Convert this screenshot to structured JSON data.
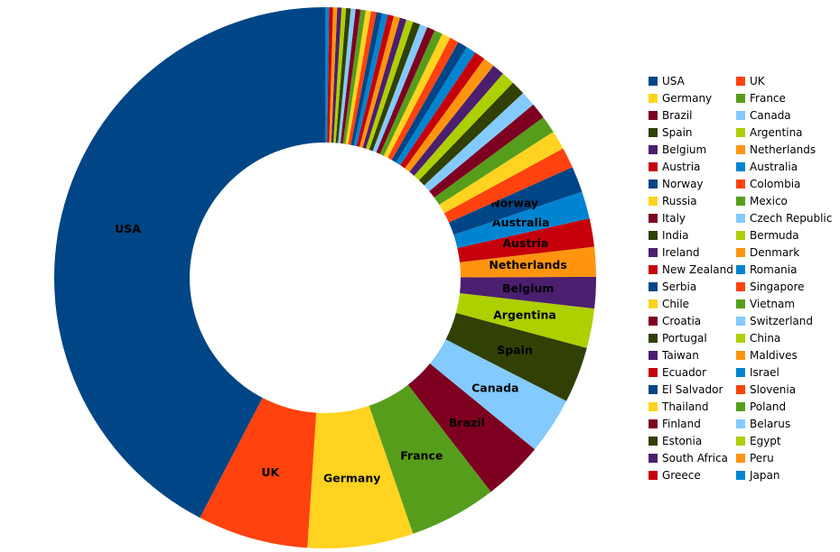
{
  "chart_data": {
    "type": "pie",
    "subtype": "donut",
    "title": "",
    "categories": [
      "USA",
      "UK",
      "Germany",
      "France",
      "Brazil",
      "Canada",
      "Spain",
      "Argentina",
      "Belgium",
      "Netherlands",
      "Austria",
      "Australia",
      "Norway",
      "Colombia",
      "Russia",
      "Mexico",
      "Italy",
      "Czech Republic",
      "India",
      "Bermuda",
      "Ireland",
      "Denmark",
      "New Zealand",
      "Romania",
      "Serbia",
      "Singapore",
      "Chile",
      "Vietnam",
      "Croatia",
      "Switzerland",
      "Portugal",
      "China",
      "Taiwan",
      "Maldives",
      "Ecuador",
      "Israel",
      "El Salvador",
      "Slovenia",
      "Thailand",
      "Poland",
      "Finland",
      "Belarus",
      "Estonia",
      "Egypt",
      "South Africa",
      "Peru",
      "Greece",
      "Japan"
    ],
    "values": [
      43.0,
      6.7,
      6.4,
      5.3,
      3.65,
      3.45,
      3.4,
      2.4,
      1.9,
      1.8,
      1.72,
      1.65,
      1.58,
      1.25,
      1.15,
      1.05,
      0.97,
      0.92,
      0.86,
      0.8,
      0.74,
      0.69,
      0.65,
      0.61,
      0.58,
      0.55,
      0.53,
      0.5,
      0.48,
      0.46,
      0.44,
      0.42,
      0.4,
      0.38,
      0.37,
      0.35,
      0.34,
      0.33,
      0.32,
      0.31,
      0.3,
      0.29,
      0.28,
      0.27,
      0.26,
      0.25,
      0.24,
      0.23
    ],
    "unit": "percent-of-total (estimated from slice angles)",
    "palette": [
      "#004586",
      "#FF420E",
      "#FFD320",
      "#579D1C",
      "#7E0021",
      "#83CAFF",
      "#314004",
      "#AECF00",
      "#4B1F6F",
      "#FF950E",
      "#C5000B",
      "#0084D1"
    ],
    "start_angle_deg": 90,
    "direction": "counterclockwise",
    "donut_hole_ratio": 0.5,
    "labeled_slices": [
      "USA",
      "UK",
      "Germany",
      "France",
      "Brazil",
      "Canada",
      "Spain",
      "Argentina",
      "Belgium",
      "Netherlands",
      "Austria",
      "Australia",
      "Norway"
    ],
    "legend": {
      "position": "right",
      "columns": 2,
      "order": "row-major"
    },
    "colors": {
      "background": "#ffffff",
      "label_text": "#000000",
      "legend_text": "#000000"
    }
  }
}
